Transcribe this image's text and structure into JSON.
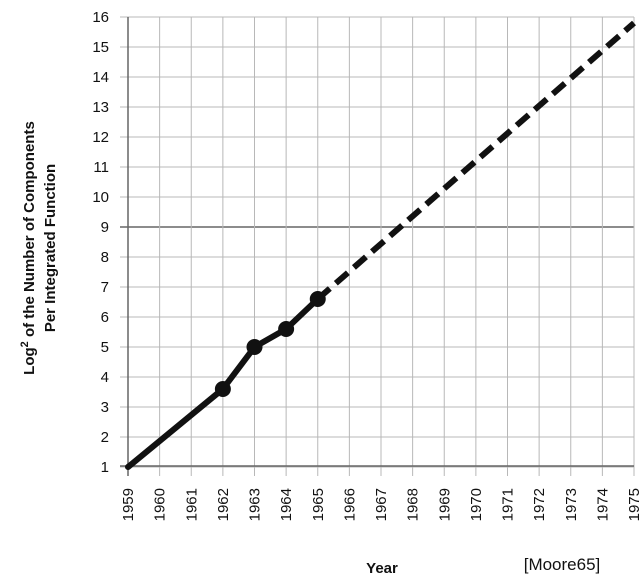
{
  "chart_data": {
    "type": "line",
    "title": "",
    "xlabel": "Year",
    "ylabel": {
      "prefix": "Log",
      "superscript": "2",
      "line1_rest": " of the Number of Components",
      "line2": "Per Integrated Function"
    },
    "source": "[Moore65]",
    "x_ticks": [
      "1959",
      "1960",
      "1961",
      "1962",
      "1963",
      "1964",
      "1965",
      "1966",
      "1967",
      "1968",
      "1969",
      "1970",
      "1971",
      "1972",
      "1973",
      "1974",
      "1975"
    ],
    "y_ticks": [
      1,
      2,
      3,
      4,
      5,
      6,
      7,
      8,
      9,
      10,
      11,
      12,
      13,
      14,
      15,
      16
    ],
    "xlim": [
      1959,
      1975
    ],
    "ylim": [
      0.5,
      16
    ],
    "grid": true,
    "highlight_gridline_y": 9,
    "series": [
      {
        "style": "solid",
        "markers": true,
        "points": [
          {
            "x": 1962,
            "y": 3.6
          },
          {
            "x": 1963,
            "y": 5.0
          },
          {
            "x": 1964,
            "y": 5.6
          },
          {
            "x": 1965,
            "y": 6.6
          }
        ]
      },
      {
        "style": "solid",
        "markers": false,
        "points": [
          {
            "x": 1959,
            "y": 1.0
          },
          {
            "x": 1962,
            "y": 3.6
          }
        ]
      },
      {
        "style": "dashed",
        "markers": false,
        "points": [
          {
            "x": 1965,
            "y": 6.6
          },
          {
            "x": 1975,
            "y": 15.8
          }
        ]
      }
    ],
    "colors": {
      "line": "#111111",
      "grid": "#b8b8b8",
      "highlight_grid": "#8c8c8c",
      "axis": "#666666"
    }
  }
}
